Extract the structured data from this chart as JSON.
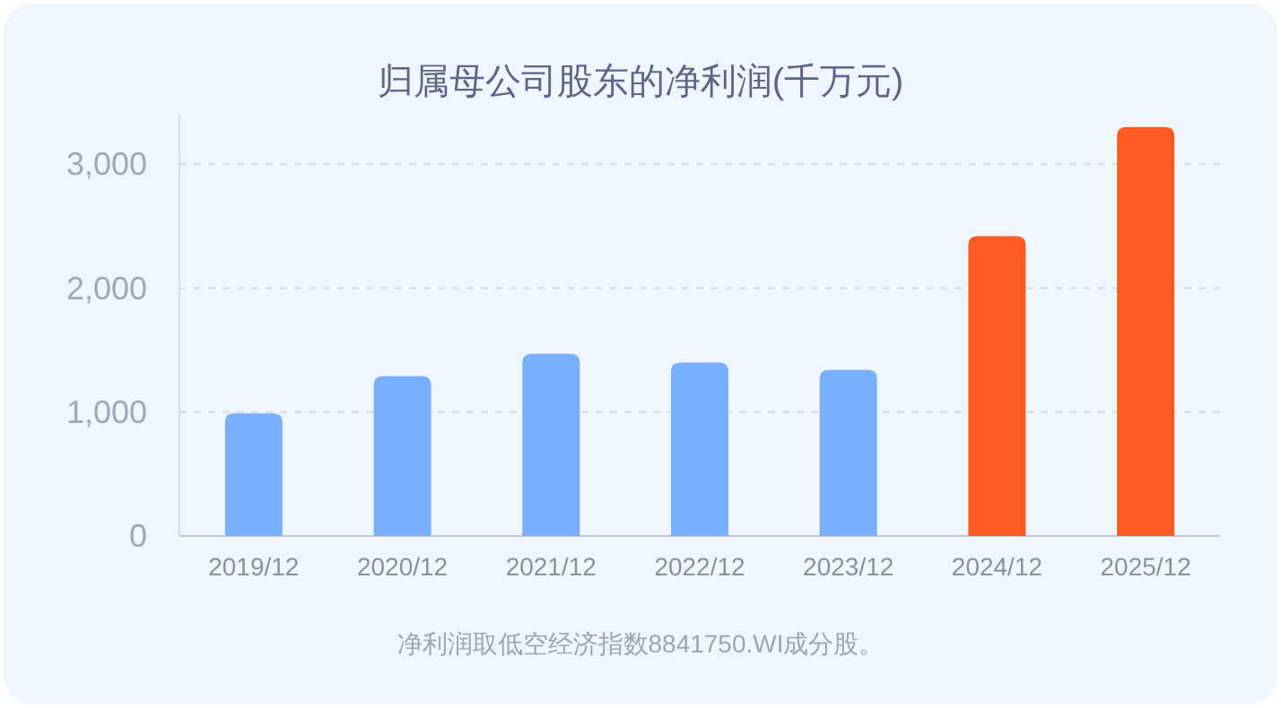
{
  "chart_data": {
    "type": "bar",
    "title": "归属母公司股东的净利润(千万元)",
    "categories": [
      "2019/12",
      "2020/12",
      "2021/12",
      "2022/12",
      "2023/12",
      "2024/12",
      "2025/12"
    ],
    "values": [
      990,
      1290,
      1470,
      1400,
      1340,
      2420,
      3300
    ],
    "colors": [
      "#78afff",
      "#78afff",
      "#78afff",
      "#78afff",
      "#78afff",
      "#ff5a22",
      "#ff5a22"
    ],
    "ylim": [
      0,
      3400
    ],
    "yticks": [
      {
        "value": 0,
        "label": "0"
      },
      {
        "value": 1000,
        "label": "1,000"
      },
      {
        "value": 2000,
        "label": "2,000"
      },
      {
        "value": 3000,
        "label": "3,000"
      }
    ],
    "grid": "y",
    "annotations": [
      "净利润取低空经济指数8841750.WI成分股。"
    ]
  }
}
